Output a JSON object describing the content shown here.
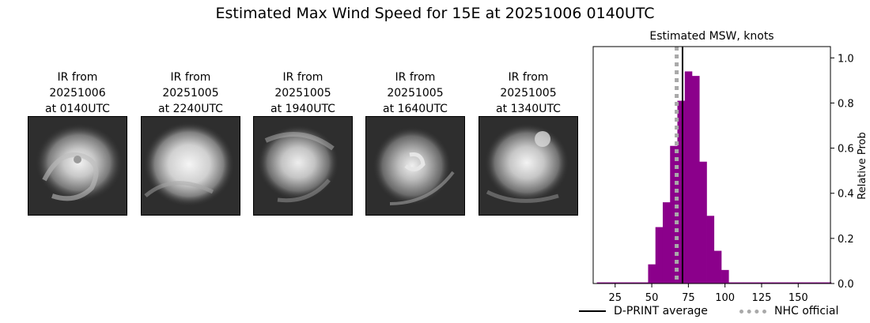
{
  "suptitle": "Estimated Max Wind Speed for 15E at 20251006 0140UTC",
  "panels": [
    {
      "title": "IR from\n20251006\nat 0140UTC"
    },
    {
      "title": "IR from\n20251005\nat 2240UTC"
    },
    {
      "title": "IR from\n20251005\nat 1940UTC"
    },
    {
      "title": "IR from\n20251005\nat 1640UTC"
    },
    {
      "title": "IR from\n20251005\nat 1340UTC"
    }
  ],
  "chart_data": {
    "type": "bar",
    "title": "Estimated MSW, knots",
    "xlabel": "",
    "ylabel": "Relative Prob",
    "xlim": [
      10,
      172
    ],
    "ylim": [
      0,
      1.05
    ],
    "xticks": [
      25,
      50,
      75,
      100,
      125,
      150
    ],
    "yticks": [
      0.0,
      0.2,
      0.4,
      0.6,
      0.8,
      1.0
    ],
    "bin_width": 5,
    "bar_color": "#8b008b",
    "bins": [
      {
        "x": 15,
        "y": 0.005
      },
      {
        "x": 20,
        "y": 0.005
      },
      {
        "x": 25,
        "y": 0.005
      },
      {
        "x": 30,
        "y": 0.005
      },
      {
        "x": 35,
        "y": 0.005
      },
      {
        "x": 40,
        "y": 0.005
      },
      {
        "x": 45,
        "y": 0.005
      },
      {
        "x": 50,
        "y": 0.085
      },
      {
        "x": 55,
        "y": 0.25
      },
      {
        "x": 60,
        "y": 0.36
      },
      {
        "x": 65,
        "y": 0.61
      },
      {
        "x": 70,
        "y": 0.81
      },
      {
        "x": 75,
        "y": 0.94
      },
      {
        "x": 80,
        "y": 0.92
      },
      {
        "x": 85,
        "y": 0.54
      },
      {
        "x": 90,
        "y": 0.3
      },
      {
        "x": 95,
        "y": 0.145
      },
      {
        "x": 100,
        "y": 0.06
      },
      {
        "x": 105,
        "y": 0.005
      },
      {
        "x": 110,
        "y": 0.005
      },
      {
        "x": 115,
        "y": 0.005
      },
      {
        "x": 120,
        "y": 0.005
      },
      {
        "x": 125,
        "y": 0.005
      },
      {
        "x": 130,
        "y": 0.005
      },
      {
        "x": 135,
        "y": 0.005
      },
      {
        "x": 140,
        "y": 0.005
      },
      {
        "x": 145,
        "y": 0.005
      },
      {
        "x": 150,
        "y": 0.005
      },
      {
        "x": 155,
        "y": 0.005
      },
      {
        "x": 160,
        "y": 0.005
      },
      {
        "x": 165,
        "y": 0.005
      },
      {
        "x": 170,
        "y": 0.005
      }
    ],
    "lines": [
      {
        "name": "D-PRINT average",
        "x": 71,
        "color": "#000000",
        "style": "solid"
      },
      {
        "name": "NHC official",
        "x": 67,
        "color": "#a9a9a9",
        "style": "dotted"
      }
    ],
    "legend": "bottom"
  }
}
